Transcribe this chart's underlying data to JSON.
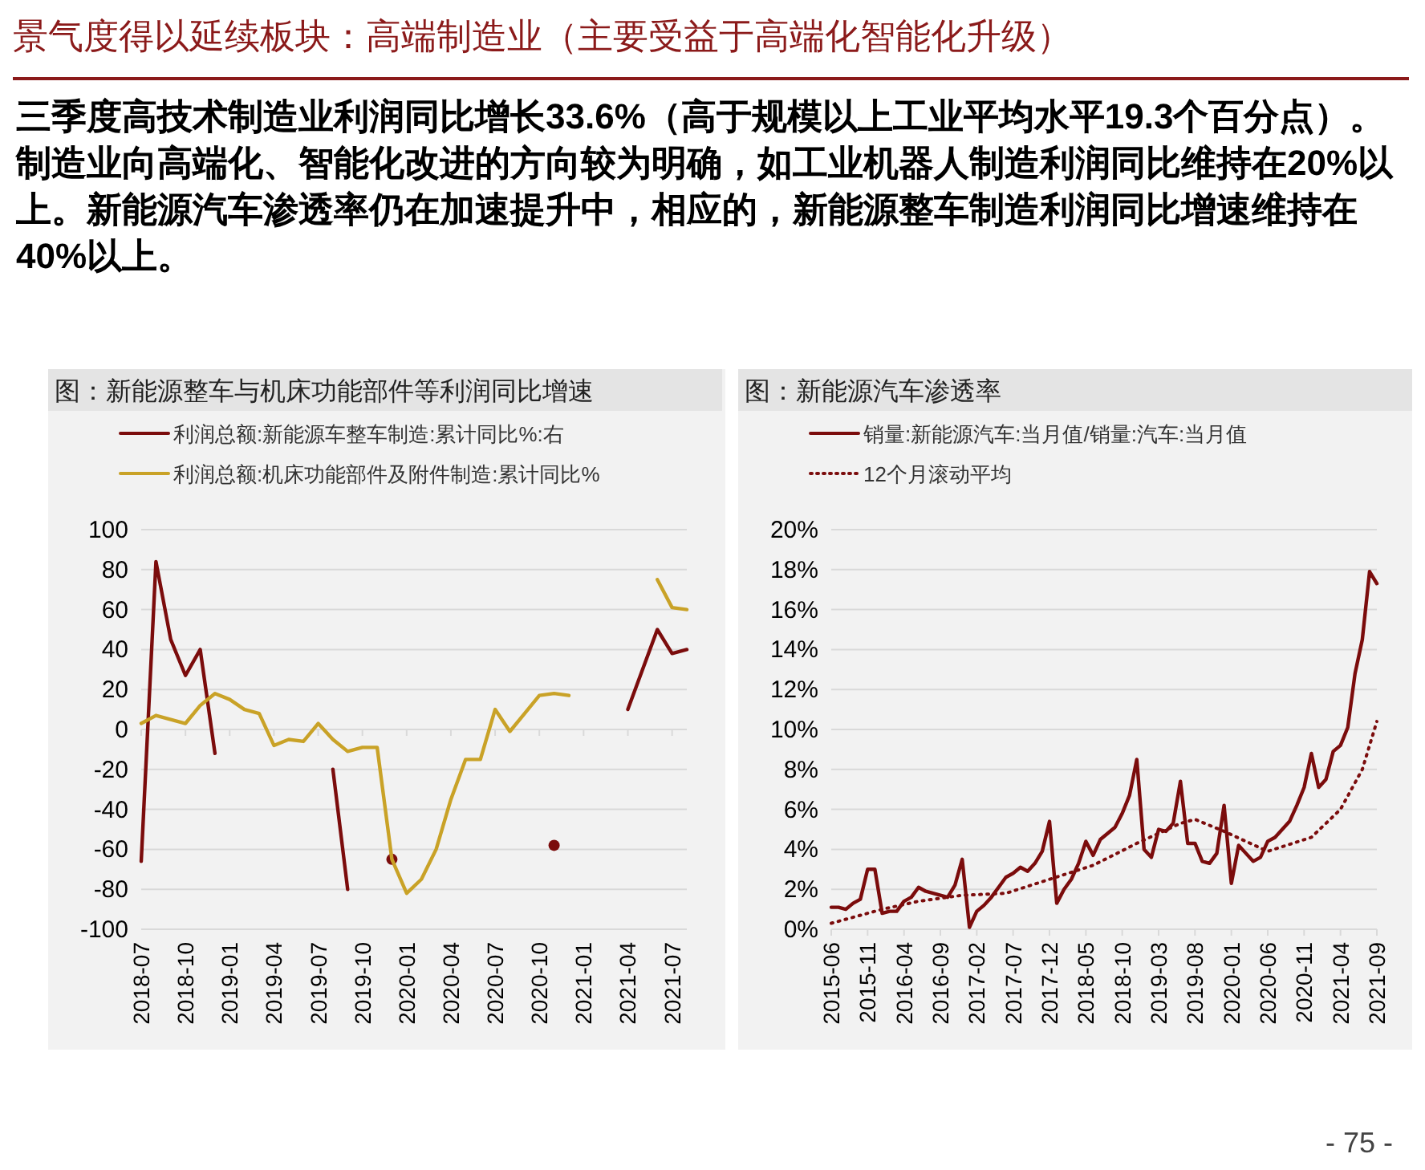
{
  "chart_data": [
    {
      "type": "other",
      "title": "景气度得以延续板块：高端制造业（主要受益于高端化智能化升级）",
      "annotations": [
        "三季度高技术制造业利润同比增长33.6%（高于规模以上工业平均水平19.3个百分点）。制造业向高端化、智能化改进的方向较为明确，如工业机器人制造利润同比维持在20%以上。新能源汽车渗透率仍在加速提升中，相应的，新能源整车制造利润同比增速维持在40%以上。",
        "- 75 -"
      ]
    },
    {
      "type": "line",
      "title": "图：新能源整车与机床功能部件等利润同比增速",
      "x": [
        "2018-07",
        "2018-08",
        "2018-09",
        "2018-10",
        "2018-11",
        "2018-12",
        "2019-01",
        "2019-02",
        "2019-03",
        "2019-04",
        "2019-05",
        "2019-06",
        "2019-07",
        "2019-08",
        "2019-09",
        "2019-10",
        "2019-11",
        "2019-12",
        "2020-01",
        "2020-02",
        "2020-03",
        "2020-04",
        "2020-05",
        "2020-06",
        "2020-07",
        "2020-08",
        "2020-09",
        "2020-10",
        "2020-11",
        "2020-12",
        "2021-04",
        "2021-06",
        "2021-07",
        "2021-08"
      ],
      "series": [
        {
          "name": "利润总额:新能源车整车制造:累计同比%:右",
          "color": "#7b0c0c",
          "values": [
            -66,
            84,
            45,
            27,
            40,
            -12,
            null,
            null,
            null,
            null,
            null,
            null,
            null,
            -20,
            -80,
            null,
            null,
            -65,
            null,
            null,
            null,
            null,
            null,
            null,
            null,
            null,
            null,
            null,
            -58,
            null,
            10,
            50,
            38,
            40
          ]
        },
        {
          "name": "利润总额:机床功能部件及附件制造:累计同比%",
          "color": "#c9a227",
          "values": [
            3,
            7,
            5,
            3,
            12,
            18,
            15,
            10,
            8,
            -8,
            -5,
            -6,
            3,
            -5,
            -11,
            -9,
            -9,
            -65,
            -82,
            -75,
            -60,
            -35,
            -15,
            -15,
            10,
            -1,
            8,
            17,
            18,
            17,
            null,
            75,
            61,
            60
          ]
        }
      ],
      "xlim": [
        "2018-07",
        "2021-08"
      ],
      "xticks": [
        "2018-07",
        "2018-10",
        "2019-01",
        "2019-04",
        "2019-07",
        "2019-10",
        "2020-01",
        "2020-04",
        "2020-07",
        "2020-10",
        "2021-01",
        "2021-04",
        "2021-07"
      ],
      "ylim": [
        -100,
        100
      ],
      "yticks": [
        -100,
        -80,
        -60,
        -40,
        -20,
        0,
        20,
        40,
        60,
        80,
        100
      ],
      "grid": "y",
      "legend": "top"
    },
    {
      "type": "line",
      "title": "图：新能源汽车渗透率",
      "xlim": [
        "2015-06",
        "2021-09"
      ],
      "xticks": [
        "2015-06",
        "2015-11",
        "2016-04",
        "2016-09",
        "2017-02",
        "2017-07",
        "2017-12",
        "2018-05",
        "2018-10",
        "2019-03",
        "2019-08",
        "2020-01",
        "2020-06",
        "2020-11",
        "2021-04",
        "2021-09"
      ],
      "ylim": [
        0,
        20
      ],
      "yticks": [
        {
          "value": 0,
          "label": "0%"
        },
        {
          "value": 2,
          "label": "2%"
        },
        {
          "value": 4,
          "label": "4%"
        },
        {
          "value": 6,
          "label": "6%"
        },
        {
          "value": 8,
          "label": "8%"
        },
        {
          "value": 10,
          "label": "10%"
        },
        {
          "value": 12,
          "label": "12%"
        },
        {
          "value": 14,
          "label": "14%"
        },
        {
          "value": 16,
          "label": "16%"
        },
        {
          "value": 18,
          "label": "18%"
        },
        {
          "value": 20,
          "label": "20%"
        }
      ],
      "series": [
        {
          "name": "销量:新能源汽车:当月值/销量:汽车:当月值",
          "color": "#7b0c0c",
          "line_style": "solid",
          "x": [
            "2015-06",
            "2015-07",
            "2015-08",
            "2015-09",
            "2015-10",
            "2015-11",
            "2015-12",
            "2016-01",
            "2016-02",
            "2016-03",
            "2016-04",
            "2016-05",
            "2016-06",
            "2016-07",
            "2016-08",
            "2016-09",
            "2016-10",
            "2016-11",
            "2016-12",
            "2017-01",
            "2017-02",
            "2017-03",
            "2017-04",
            "2017-05",
            "2017-06",
            "2017-07",
            "2017-08",
            "2017-09",
            "2017-10",
            "2017-11",
            "2017-12",
            "2018-01",
            "2018-02",
            "2018-03",
            "2018-04",
            "2018-05",
            "2018-06",
            "2018-07",
            "2018-08",
            "2018-09",
            "2018-10",
            "2018-11",
            "2018-12",
            "2019-01",
            "2019-02",
            "2019-03",
            "2019-04",
            "2019-05",
            "2019-06",
            "2019-07",
            "2019-08",
            "2019-09",
            "2019-10",
            "2019-11",
            "2019-12",
            "2020-01",
            "2020-02",
            "2020-03",
            "2020-04",
            "2020-05",
            "2020-06",
            "2020-07",
            "2020-08",
            "2020-09",
            "2020-10",
            "2020-11",
            "2020-12",
            "2021-01",
            "2021-02",
            "2021-03",
            "2021-04",
            "2021-05",
            "2021-06",
            "2021-07",
            "2021-08",
            "2021-09"
          ],
          "values": [
            1.1,
            1.1,
            1.0,
            1.3,
            1.5,
            3.0,
            3.0,
            0.8,
            0.9,
            0.9,
            1.4,
            1.6,
            2.1,
            1.9,
            1.8,
            1.7,
            1.6,
            2.2,
            3.5,
            0.1,
            0.9,
            1.2,
            1.6,
            2.1,
            2.6,
            2.8,
            3.1,
            2.9,
            3.3,
            3.9,
            5.4,
            1.3,
            2.0,
            2.5,
            3.3,
            4.4,
            3.7,
            4.5,
            4.8,
            5.1,
            5.8,
            6.7,
            8.5,
            4.0,
            3.6,
            5.0,
            4.9,
            5.3,
            7.4,
            4.3,
            4.3,
            3.4,
            3.3,
            3.8,
            6.2,
            2.3,
            4.2,
            3.8,
            3.4,
            3.6,
            4.4,
            4.6,
            5.0,
            5.4,
            6.2,
            7.1,
            8.8,
            7.1,
            7.5,
            8.9,
            9.2,
            10.1,
            12.8,
            14.5,
            17.9,
            17.3
          ]
        },
        {
          "name": "12个月滚动平均",
          "color": "#7b0c0c",
          "line_style": "dotted",
          "x": [
            "2015-06",
            "2016-01",
            "2016-06",
            "2016-12",
            "2017-06",
            "2017-12",
            "2018-06",
            "2018-12",
            "2019-06",
            "2019-08",
            "2019-12",
            "2020-06",
            "2020-12",
            "2021-04",
            "2021-07",
            "2021-09"
          ],
          "values": [
            0.3,
            1.0,
            1.4,
            1.7,
            1.8,
            2.5,
            3.2,
            4.3,
            5.3,
            5.5,
            4.9,
            3.9,
            4.6,
            6.0,
            8.0,
            10.4
          ]
        }
      ],
      "grid": "y",
      "legend": "top"
    }
  ]
}
